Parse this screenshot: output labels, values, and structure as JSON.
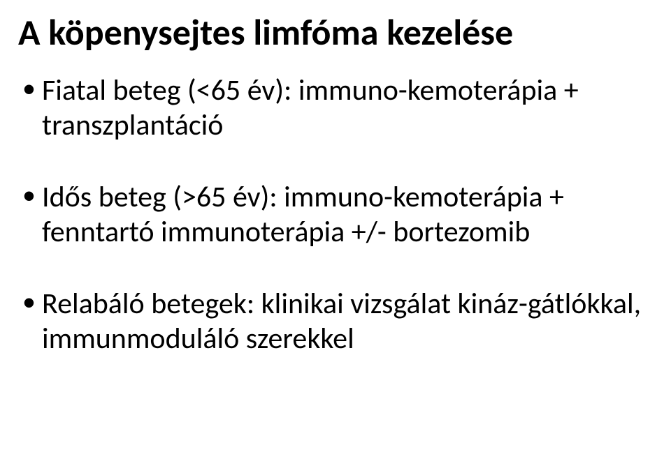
{
  "title": "A köpenysejtes limfóma kezelése",
  "bullets": [
    "Fiatal beteg (<65 év): immuno-kemoterápia + transzplantáció",
    "Idős beteg (>65 év): immuno-kemoterápia + fenntartó immunoterápia +/- bortezomib",
    "Relabáló betegek: klinikai vizsgálat kináz-gátlókkal, immunmoduláló szerekkel"
  ],
  "colors": {
    "background": "#ffffff",
    "text": "#000000"
  },
  "typography": {
    "title_fontsize_pt": 40,
    "title_weight": "bold",
    "body_fontsize_pt": 32,
    "body_weight": "normal",
    "font_family": "Calibri"
  }
}
